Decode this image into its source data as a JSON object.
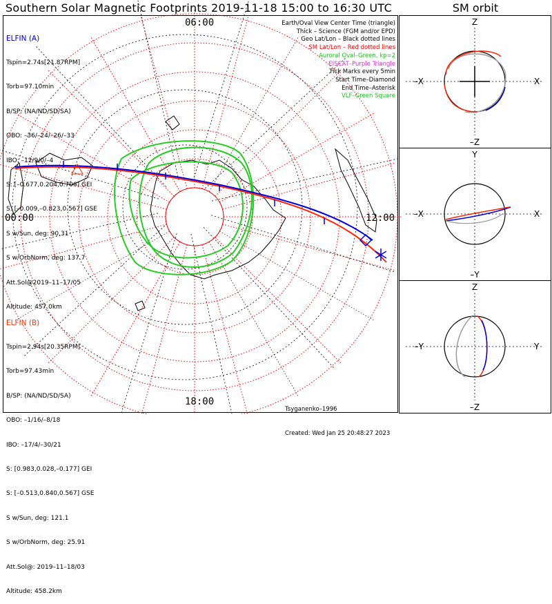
{
  "title": "Southern Solar Magnetic Footprints 2019-11-18 15:00 to 16:30 UTC",
  "sm_title": "SM orbit",
  "clock_labels": {
    "top": "06:00",
    "bottom": "18:00",
    "left": "00:00",
    "right": "12:00"
  },
  "spacecraft_a": {
    "header": "ELFIN (A)",
    "lines": [
      "Tspin=2.74s[21.87RPM]",
      "Torb=97.10min",
      "B/SP: (NA/ND/SD/SA)",
      "OBO: –36/–24/–26/–33",
      "IBO: –12/9/0/–4",
      "S: [–0.677,0.204,0.706] GEI",
      "S: [–0.009,–0.823,0.567] GSE",
      "S w/Sun, deg: 90.31",
      "S w/OrbNorm, deg: 137.7",
      "Att.Sol@2019–11–17/05",
      "Altitude: 457.0km"
    ]
  },
  "spacecraft_b": {
    "header": "ELFIN (B)",
    "lines": [
      "Tspin=2.94s[20.35RPM]",
      "Torb=97.43min",
      "B/SP: (NA/ND/SD/SA)",
      "OBO: –1/16/–8/18",
      "IBO: –17/4/–30/21",
      "S: [0.983,0.028,–0.177] GEI",
      "S: [–0.513,0.840,0.567] GSE",
      "S w/Sun, deg: 121.1",
      "S w/OrbNorm, deg: 25.91",
      "Att.Sol@: 2019–11–18/03",
      "Altitude: 458.2km"
    ]
  },
  "legend": [
    {
      "text": "Earth/Oval View Center Time (triangle)",
      "color": "#000000"
    },
    {
      "text": "Thick – Science (FGM and/or EPD)",
      "color": "#000000"
    },
    {
      "text": "Geo Lat/Lon – Black dotted lines",
      "color": "#000000"
    },
    {
      "text": "SM Lat/Lon – Red dotted lines",
      "color": "#ee0000"
    },
    {
      "text": "Auroral Oval–Green, kp=2",
      "color": "#22bb22"
    },
    {
      "text": "EISCAT–Purple Triangle",
      "color": "#cc33cc"
    },
    {
      "text": "Tick Marks every 5min",
      "color": "#000000"
    },
    {
      "text": "Start Time–Diamond",
      "color": "#000000"
    },
    {
      "text": "End Time–Asterisk",
      "color": "#000000"
    },
    {
      "text": "VLF–Green Square",
      "color": "#22bb22"
    }
  ],
  "credits": [
    "Tsyganenko–1996",
    "Created: Wed Jan 25 20:48:27 2023"
  ],
  "sm_panels": [
    {
      "id": "xz",
      "top": "Z",
      "bottom": "–Z",
      "left": "–X",
      "right": "X"
    },
    {
      "id": "xy",
      "top": "Y",
      "bottom": "–Y",
      "left": "–X",
      "right": "X"
    },
    {
      "id": "yz",
      "top": "Z",
      "bottom": "–Z",
      "left": "–Y",
      "right": "Y"
    }
  ],
  "colors": {
    "elfin_a": "#0000dd",
    "elfin_b": "#ff2200",
    "sm_grid": "#ee0000",
    "geo_grid": "#000000",
    "auroral_oval": "#22cc22",
    "coast": "#000000"
  },
  "chart_data": {
    "type": "polar-map",
    "projection": "southern hemisphere, solar magnetic, polar view",
    "time_range": [
      "2019-11-18 15:00",
      "2019-11-18 16:30"
    ],
    "kp": 2,
    "series": [
      {
        "name": "ELFIN (A)",
        "marker_start": "diamond",
        "marker_end": "asterisk"
      },
      {
        "name": "ELFIN (B)",
        "marker_start": "diamond",
        "marker_end": "asterisk"
      }
    ]
  }
}
